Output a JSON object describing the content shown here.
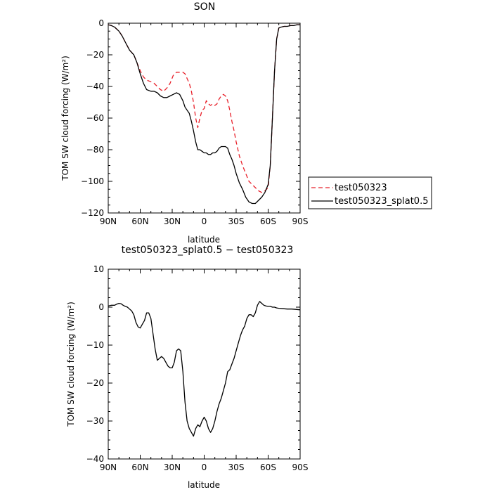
{
  "chart_data": [
    {
      "type": "line",
      "title": "SON",
      "xlabel": "latitude",
      "ylabel": "TOM SW cloud forcing (W/m²)",
      "x_ticks": [
        "90N",
        "60N",
        "30N",
        "0",
        "30S",
        "60S",
        "90S"
      ],
      "y_ticks": [
        "0",
        "−20",
        "−40",
        "−60",
        "−80",
        "−100",
        "−120"
      ],
      "xlim": [
        90,
        -90
      ],
      "ylim": [
        -120,
        0
      ],
      "legend_position": "right",
      "series": [
        {
          "name": "test050323",
          "color": "#e8202a",
          "dash": "dashed",
          "x": [
            90,
            87,
            84,
            80,
            77,
            74,
            70,
            66,
            63,
            60,
            57,
            54,
            50,
            47,
            44,
            41,
            38,
            35,
            32,
            29,
            26,
            23,
            20,
            18,
            16,
            14,
            12,
            10,
            8,
            6,
            4,
            2,
            0,
            -2,
            -4,
            -6,
            -8,
            -10,
            -12,
            -14,
            -16,
            -18,
            -20,
            -22,
            -24,
            -26,
            -28,
            -30,
            -33,
            -36,
            -39,
            -42,
            -45,
            -48,
            -51,
            -54,
            -57,
            -60,
            -62,
            -64,
            -66,
            -68,
            -70,
            -72,
            -75,
            -78,
            -81,
            -84,
            -87,
            -90
          ],
          "y": [
            -1,
            -1.5,
            -2.5,
            -5,
            -8,
            -12,
            -17,
            -20,
            -25,
            -30,
            -34,
            -36,
            -37,
            -38,
            -40,
            -42,
            -43,
            -41,
            -38,
            -33,
            -31,
            -31,
            -31,
            -32,
            -35,
            -38,
            -43,
            -50,
            -60,
            -66,
            -60,
            -55,
            -54,
            -49,
            -51,
            -52,
            -51,
            -52,
            -51,
            -48,
            -46,
            -45,
            -46,
            -49,
            -55,
            -62,
            -68,
            -75,
            -84,
            -90,
            -95,
            -100,
            -102,
            -104,
            -106,
            -107,
            -106,
            -104,
            -90,
            -60,
            -30,
            -10,
            -3,
            -2.5,
            -2,
            -2,
            -1.5,
            -1.5,
            -1,
            -1
          ]
        },
        {
          "name": "test050323_splat0.5",
          "color": "#000000",
          "dash": "solid",
          "x": [
            90,
            87,
            84,
            80,
            77,
            74,
            70,
            66,
            63,
            60,
            57,
            54,
            50,
            47,
            44,
            41,
            38,
            35,
            32,
            29,
            26,
            23,
            20,
            18,
            16,
            14,
            12,
            10,
            8,
            6,
            4,
            2,
            0,
            -2,
            -4,
            -6,
            -8,
            -10,
            -12,
            -14,
            -16,
            -18,
            -20,
            -22,
            -24,
            -26,
            -28,
            -30,
            -33,
            -36,
            -39,
            -42,
            -45,
            -48,
            -51,
            -54,
            -57,
            -60,
            -62,
            -64,
            -66,
            -68,
            -70,
            -72,
            -75,
            -78,
            -81,
            -84,
            -87,
            -90
          ],
          "y": [
            -1,
            -1.5,
            -2.5,
            -5,
            -8,
            -12,
            -17,
            -20,
            -25,
            -32,
            -38,
            -42,
            -43,
            -43,
            -44,
            -46,
            -47,
            -47,
            -46,
            -45,
            -44,
            -45,
            -49,
            -53,
            -55,
            -57,
            -62,
            -68,
            -75,
            -80,
            -80,
            -81,
            -82,
            -82,
            -83,
            -83,
            -82,
            -82,
            -81,
            -79,
            -78,
            -78,
            -78,
            -79,
            -83,
            -86,
            -90,
            -95,
            -101,
            -105,
            -110,
            -113,
            -114,
            -114,
            -112,
            -110,
            -107,
            -102,
            -90,
            -60,
            -30,
            -10,
            -3,
            -2.5,
            -2,
            -2,
            -1.5,
            -1.5,
            -1,
            -1
          ]
        }
      ]
    },
    {
      "type": "line",
      "title": "test050323_splat0.5 − test050323",
      "xlabel": "latitude",
      "ylabel": "TOM SW cloud forcing (W/m²)",
      "x_ticks": [
        "90N",
        "60N",
        "30N",
        "0",
        "30S",
        "60S",
        "90S"
      ],
      "y_ticks": [
        "10",
        "0",
        "−10",
        "−20",
        "−30",
        "−40"
      ],
      "xlim": [
        90,
        -90
      ],
      "ylim": [
        -40,
        10
      ],
      "series": [
        {
          "color": "#000000",
          "dash": "solid",
          "x": [
            90,
            87,
            84,
            82,
            80,
            78,
            76,
            74,
            72,
            70,
            68,
            66,
            64,
            62,
            60,
            58,
            56,
            54,
            52,
            50,
            48,
            46,
            44,
            42,
            40,
            38,
            36,
            34,
            32,
            30,
            28,
            26,
            24,
            22,
            20,
            18,
            16,
            14,
            12,
            10,
            8,
            6,
            4,
            2,
            0,
            -2,
            -4,
            -6,
            -8,
            -10,
            -12,
            -14,
            -16,
            -18,
            -20,
            -22,
            -24,
            -26,
            -28,
            -30,
            -32,
            -34,
            -36,
            -38,
            -40,
            -42,
            -44,
            -46,
            -48,
            -50,
            -52,
            -54,
            -56,
            -58,
            -60,
            -62,
            -64,
            -66,
            -68,
            -70,
            -74,
            -78,
            -82,
            -86,
            -90
          ],
          "y": [
            0.3,
            0.5,
            0.5,
            0.8,
            1.0,
            0.9,
            0.5,
            0.2,
            0.0,
            -0.5,
            -1.0,
            -2.0,
            -4.0,
            -5.2,
            -5.5,
            -4.5,
            -3.5,
            -1.5,
            -1.5,
            -3.0,
            -7.0,
            -11.0,
            -14.0,
            -13.5,
            -13.0,
            -13.5,
            -14.5,
            -15.5,
            -16.0,
            -16.0,
            -14.5,
            -11.5,
            -11.0,
            -11.5,
            -17.0,
            -25.0,
            -30.0,
            -32.0,
            -33.0,
            -34.0,
            -32.0,
            -31.0,
            -31.5,
            -30.0,
            -29.0,
            -30.0,
            -32.0,
            -33.0,
            -32.0,
            -30.0,
            -27.5,
            -25.5,
            -24.0,
            -22.0,
            -20.0,
            -17.0,
            -16.5,
            -15.0,
            -13.5,
            -11.5,
            -9.5,
            -7.5,
            -6.0,
            -5.0,
            -3.0,
            -2.0,
            -2.0,
            -2.5,
            -1.5,
            0.5,
            1.5,
            1.0,
            0.5,
            0.3,
            0.2,
            0.2,
            0.0,
            0.0,
            -0.2,
            -0.3,
            -0.4,
            -0.5,
            -0.5,
            -0.6,
            -0.7
          ]
        }
      ]
    }
  ]
}
